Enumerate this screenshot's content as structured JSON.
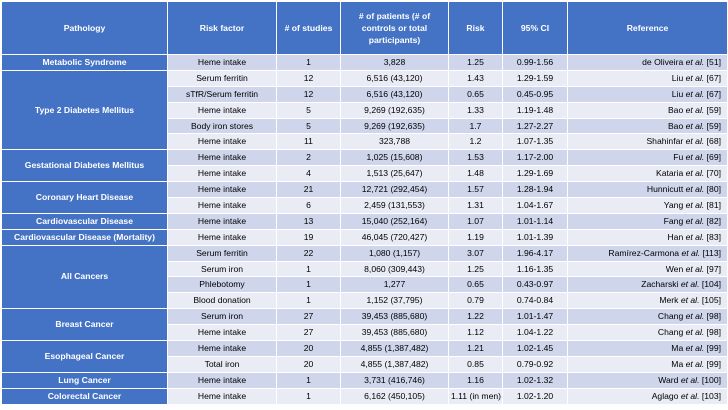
{
  "headers": {
    "pathology": "Pathology",
    "risk_factor": "Risk factor",
    "num_studies": "# of studies",
    "num_patients": "# of patients (# of controls or total participants)",
    "risk": "Risk",
    "ci": "95% CI",
    "reference": "Reference"
  },
  "groups": [
    {
      "pathology": "Metabolic Syndrome",
      "rows": [
        {
          "factor": "Heme intake",
          "studies": "1",
          "patients": "3,828",
          "risk": "1.25",
          "ci": "0.99-1.56",
          "ref_author": "de Oliveira",
          "ref_etal": "et al.",
          "ref_cite": "[51]"
        }
      ]
    },
    {
      "pathology": "Type 2 Diabetes Mellitus",
      "rows": [
        {
          "factor": "Serum ferritin",
          "studies": "12",
          "patients": "6,516 (43,120)",
          "risk": "1.43",
          "ci": "1.29-1.59",
          "ref_author": "Liu",
          "ref_etal": "et al.",
          "ref_cite": "[67]"
        },
        {
          "factor": "sTfR/Serum ferritin",
          "studies": "12",
          "patients": "6,516 (43,120)",
          "risk": "0.65",
          "ci": "0.45-0.95",
          "ref_author": "Liu",
          "ref_etal": "et al.",
          "ref_cite": "[67]"
        },
        {
          "factor": "Heme intake",
          "studies": "5",
          "patients": "9,269 (192,635)",
          "risk": "1.33",
          "ci": "1.19-1.48",
          "ref_author": "Bao",
          "ref_etal": "et al.",
          "ref_cite": "[59]"
        },
        {
          "factor": "Body iron stores",
          "studies": "5",
          "patients": "9,269 (192,635)",
          "risk": "1.7",
          "ci": "1.27-2.27",
          "ref_author": "Bao",
          "ref_etal": "et al.",
          "ref_cite": "[59]"
        },
        {
          "factor": "Heme intake",
          "studies": "11",
          "patients": "323,788",
          "risk": "1.2",
          "ci": "1.07-1.35",
          "ref_author": "Shahinfar",
          "ref_etal": "et al.",
          "ref_cite": "[68]"
        }
      ]
    },
    {
      "pathology": "Gestational Diabetes Mellitus",
      "rows": [
        {
          "factor": "Heme intake",
          "studies": "2",
          "patients": "1,025 (15,608)",
          "risk": "1.53",
          "ci": "1.17-2.00",
          "ref_author": "Fu",
          "ref_etal": "et al.",
          "ref_cite": "[69]"
        },
        {
          "factor": "Heme intake",
          "studies": "4",
          "patients": "1,513 (25,647)",
          "risk": "1.48",
          "ci": "1.29-1.69",
          "ref_author": "Kataria",
          "ref_etal": "et al.",
          "ref_cite": "[70]"
        }
      ]
    },
    {
      "pathology": "Coronary Heart Disease",
      "rows": [
        {
          "factor": "Heme intake",
          "studies": "21",
          "patients": "12,721 (292,454)",
          "risk": "1.57",
          "ci": "1.28-1.94",
          "ref_author": "Hunnicutt",
          "ref_etal": "et al.",
          "ref_cite": "[80]"
        },
        {
          "factor": "Heme intake",
          "studies": "6",
          "patients": "2,459 (131,553)",
          "risk": "1.31",
          "ci": "1.04-1.67",
          "ref_author": "Yang",
          "ref_etal": "et al.",
          "ref_cite": "[81]"
        }
      ]
    },
    {
      "pathology": "Cardiovascular Disease",
      "rows": [
        {
          "factor": "Heme intake",
          "studies": "13",
          "patients": "15,040 (252,164)",
          "risk": "1.07",
          "ci": "1.01-1.14",
          "ref_author": "Fang",
          "ref_etal": "et al.",
          "ref_cite": "[82]"
        }
      ]
    },
    {
      "pathology": "Cardiovascular Disease (Mortality)",
      "rows": [
        {
          "factor": "Heme intake",
          "studies": "19",
          "patients": "46,045 (720,427)",
          "risk": "1.19",
          "ci": "1.01-1.39",
          "ref_author": "Han",
          "ref_etal": "et al.",
          "ref_cite": "[83]"
        }
      ]
    },
    {
      "pathology": "All Cancers",
      "rows": [
        {
          "factor": "Serum ferritin",
          "studies": "22",
          "patients": "1,080 (1,157)",
          "risk": "3.07",
          "ci": "1.96-4.17",
          "ref_author": "Ramírez-Carmona",
          "ref_etal": "et al.",
          "ref_cite": "[113]"
        },
        {
          "factor": "Serum iron",
          "studies": "1",
          "patients": "8,060 (309,443)",
          "risk": "1.25",
          "ci": "1.16-1.35",
          "ref_author": "Wen",
          "ref_etal": "et al.",
          "ref_cite": "[97]"
        },
        {
          "factor": "Phlebotomy",
          "studies": "1",
          "patients": "1,277",
          "risk": "0.65",
          "ci": "0.43-0.97",
          "ref_author": "Zacharski",
          "ref_etal": "et al.",
          "ref_cite": "[104]"
        },
        {
          "factor": "Blood donation",
          "studies": "1",
          "patients": "1,152 (37,795)",
          "risk": "0.79",
          "ci": "0.74-0.84",
          "ref_author": "Merk",
          "ref_etal": "et al.",
          "ref_cite": "[105]"
        }
      ]
    },
    {
      "pathology": "Breast Cancer",
      "rows": [
        {
          "factor": "Serum iron",
          "studies": "27",
          "patients": "39,453 (885,680)",
          "risk": "1.22",
          "ci": "1.01-1.47",
          "ref_author": "Chang",
          "ref_etal": "et al.",
          "ref_cite": "[98]"
        },
        {
          "factor": "Heme intake",
          "studies": "27",
          "patients": "39,453 (885,680)",
          "risk": "1.12",
          "ci": "1.04-1.22",
          "ref_author": "Chang",
          "ref_etal": "et al.",
          "ref_cite": "[98]"
        }
      ]
    },
    {
      "pathology": "Esophageal Cancer",
      "rows": [
        {
          "factor": "Heme intake",
          "studies": "20",
          "patients": "4,855 (1,387,482)",
          "risk": "1.21",
          "ci": "1.02-1.45",
          "ref_author": "Ma",
          "ref_etal": "et al.",
          "ref_cite": "[99]"
        },
        {
          "factor": "Total iron",
          "studies": "20",
          "patients": "4,855 (1,387,482)",
          "risk": "0.85",
          "ci": "0.79-0.92",
          "ref_author": "Ma",
          "ref_etal": "et al.",
          "ref_cite": "[99]"
        }
      ]
    },
    {
      "pathology": "Lung Cancer",
      "rows": [
        {
          "factor": "Heme intake",
          "studies": "1",
          "patients": "3,731 (416,746)",
          "risk": "1.16",
          "ci": "1.02-1.32",
          "ref_author": "Ward",
          "ref_etal": "et al.",
          "ref_cite": "[100]"
        }
      ]
    },
    {
      "pathology": "Colorectal Cancer",
      "rows": [
        {
          "factor": "Heme intake",
          "studies": "1",
          "patients": "6,162 (450,105)",
          "risk": "1.11 (in men)",
          "ci": "1.02-1.20",
          "ref_author": "Aglago",
          "ref_etal": "et al.",
          "ref_cite": "[103]"
        }
      ]
    }
  ]
}
